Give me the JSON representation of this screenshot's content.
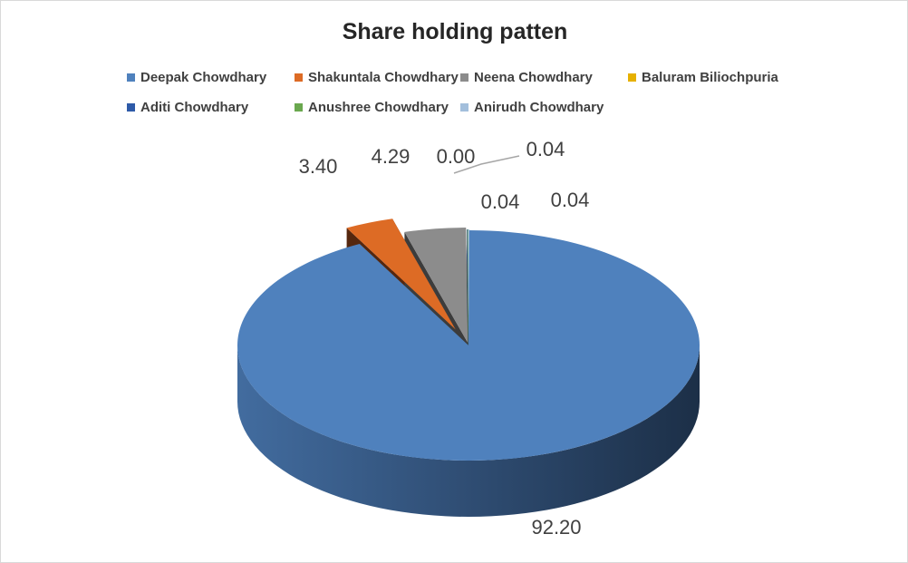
{
  "chart_data": {
    "type": "pie",
    "title": "Share holding patten",
    "legend_position": "top",
    "labels": [
      "Deepak Chowdhary",
      "Shakuntala Chowdhary",
      "Neena Chowdhary",
      "Baluram Biliochpuria",
      "Aditi Chowdhary",
      "Anushree Chowdhary",
      "Anirudh Chowdhary"
    ],
    "values": [
      92.2,
      3.4,
      4.29,
      0.0,
      0.04,
      0.04,
      0.04
    ],
    "data_labels": [
      "92.20",
      "3.40",
      "4.29",
      "0.00",
      "0.04",
      "0.04",
      "0.04"
    ],
    "colors": [
      "#4f81bd",
      "#dd6b25",
      "#8c8c8c",
      "#e6b000",
      "#2e5aa8",
      "#6aa84f",
      "#a3bfdc"
    ],
    "exploded": true,
    "style": "3d"
  }
}
